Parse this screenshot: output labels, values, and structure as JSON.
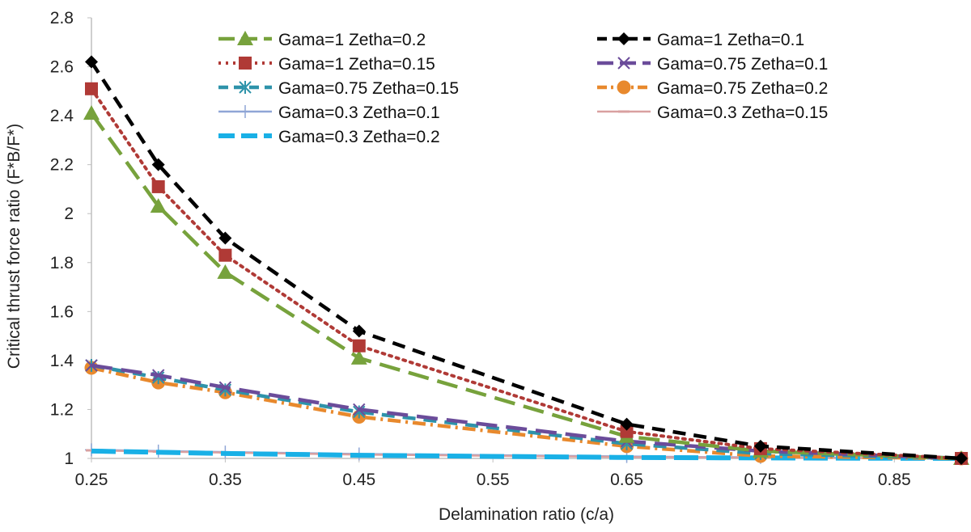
{
  "chart_data": {
    "type": "line",
    "title": "",
    "xlabel": "Delamination ratio (c/a)",
    "ylabel": "Critical thrust force ratio (F*B/F*)",
    "xlim": [
      0.25,
      0.9
    ],
    "ylim": [
      1,
      2.8
    ],
    "x_ticks": [
      "0.25",
      "0.35",
      "0.45",
      "0.55",
      "0.65",
      "0.75",
      "0.85"
    ],
    "y_ticks": [
      "1",
      "1.2",
      "1.4",
      "1.6",
      "1.8",
      "2",
      "2.2",
      "2.4",
      "2.6",
      "2.8"
    ],
    "grid": false,
    "legend_position": "top",
    "series": [
      {
        "name": "Gama=1 Zetha=0.2",
        "color": "#77a23c",
        "dash": "long-dash",
        "marker": "triangle",
        "x": [
          0.25,
          0.3,
          0.35,
          0.45,
          0.65,
          0.75,
          0.9
        ],
        "y": [
          2.41,
          2.03,
          1.76,
          1.41,
          1.09,
          1.03,
          1.0
        ]
      },
      {
        "name": "Gama=1 Zetha=0.1",
        "color": "#000000",
        "dash": "dash",
        "marker": "diamond",
        "x": [
          0.25,
          0.3,
          0.35,
          0.45,
          0.65,
          0.75,
          0.9
        ],
        "y": [
          2.62,
          2.2,
          1.9,
          1.52,
          1.14,
          1.05,
          1.0
        ]
      },
      {
        "name": "Gama=1 Zetha=0.15",
        "color": "#b03a36",
        "dash": "dot",
        "marker": "square",
        "x": [
          0.25,
          0.3,
          0.35,
          0.45,
          0.65,
          0.75,
          0.9
        ],
        "y": [
          2.51,
          2.11,
          1.83,
          1.46,
          1.11,
          1.04,
          1.0
        ]
      },
      {
        "name": "Gama=0.75 Zetha=0.1",
        "color": "#6b4c9a",
        "dash": "long-dash",
        "marker": "x",
        "x": [
          0.25,
          0.3,
          0.35,
          0.45,
          0.65,
          0.75,
          0.9
        ],
        "y": [
          1.38,
          1.34,
          1.29,
          1.2,
          1.07,
          1.03,
          1.0
        ]
      },
      {
        "name": "Gama=0.75 Zetha=0.15",
        "color": "#2e93aa",
        "dash": "dash",
        "marker": "asterisk",
        "x": [
          0.25,
          0.3,
          0.35,
          0.45,
          0.65,
          0.75,
          0.9
        ],
        "y": [
          1.38,
          1.33,
          1.28,
          1.19,
          1.06,
          1.02,
          1.0
        ]
      },
      {
        "name": "Gama=0.75 Zetha=0.2",
        "color": "#e8892d",
        "dash": "dash-dot",
        "marker": "circle",
        "x": [
          0.25,
          0.3,
          0.35,
          0.45,
          0.65,
          0.75,
          0.9
        ],
        "y": [
          1.37,
          1.31,
          1.27,
          1.17,
          1.05,
          1.01,
          1.0
        ]
      },
      {
        "name": "Gama=0.3 Zetha=0.1",
        "color": "#8fa6d6",
        "dash": "solid",
        "marker": "plus",
        "x": [
          0.25,
          0.3,
          0.35,
          0.45,
          0.65,
          0.75,
          0.9
        ],
        "y": [
          1.035,
          1.03,
          1.026,
          1.018,
          1.008,
          1.004,
          1.0
        ]
      },
      {
        "name": "Gama=0.3 Zetha=0.15",
        "color": "#d9a0a0",
        "dash": "solid",
        "marker": "dash",
        "x": [
          0.25,
          0.3,
          0.35,
          0.45,
          0.65,
          0.75,
          0.9
        ],
        "y": [
          1.033,
          1.028,
          1.024,
          1.016,
          1.006,
          1.003,
          1.0
        ]
      },
      {
        "name": "Gama=0.3 Zetha=0.2",
        "color": "#19b0e6",
        "dash": "long-dash-thick",
        "marker": "none",
        "x": [
          0.25,
          0.3,
          0.35,
          0.45,
          0.65,
          0.75,
          0.9
        ],
        "y": [
          1.03,
          1.025,
          1.02,
          1.013,
          1.004,
          1.002,
          1.0
        ]
      }
    ]
  }
}
